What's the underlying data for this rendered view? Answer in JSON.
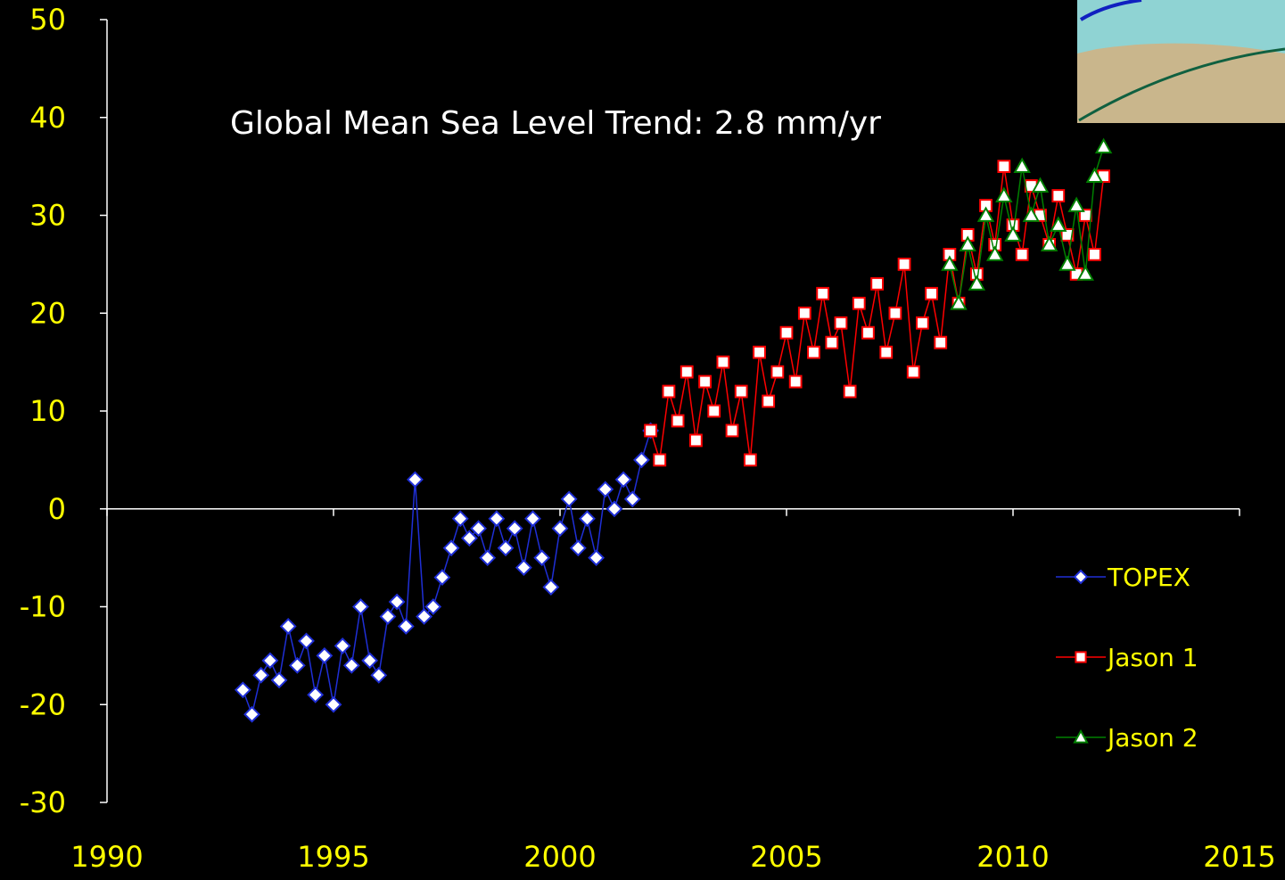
{
  "chart_data": {
    "type": "line",
    "title": "Global Mean Sea Level Trend: 2.8 mm/yr",
    "xlim": [
      1990,
      2015
    ],
    "xticks": [
      1990,
      1995,
      2000,
      2005,
      2010,
      2015
    ],
    "ylim": [
      -30,
      50
    ],
    "yticks": [
      -30,
      -20,
      -10,
      0,
      10,
      20,
      30,
      40,
      50
    ],
    "legend": "right",
    "series": [
      {
        "name": "TOPEX",
        "color": "#1f2fd6",
        "marker": "diamond",
        "x": [
          1993.0,
          1993.2,
          1993.4,
          1993.6,
          1993.8,
          1994.0,
          1994.2,
          1994.4,
          1994.6,
          1994.8,
          1995.0,
          1995.2,
          1995.4,
          1995.6,
          1995.8,
          1996.0,
          1996.2,
          1996.4,
          1996.6,
          1996.8,
          1997.0,
          1997.2,
          1997.4,
          1997.6,
          1997.8,
          1998.0,
          1998.2,
          1998.4,
          1998.6,
          1998.8,
          1999.0,
          1999.2,
          1999.4,
          1999.6,
          1999.8,
          2000.0,
          2000.2,
          2000.4,
          2000.6,
          2000.8,
          2001.0,
          2001.2,
          2001.4,
          2001.6,
          2001.8,
          2002.0
        ],
        "values": [
          -18.5,
          -21,
          -17,
          -15.5,
          -17.5,
          -12,
          -16,
          -13.5,
          -19,
          -15,
          -20,
          -14,
          -16,
          -10,
          -15.5,
          -17,
          -11,
          -9.5,
          -12,
          3,
          -11,
          -10,
          -7,
          -4,
          -1,
          -3,
          -2,
          -5,
          -1,
          -4,
          -2,
          -6,
          -1,
          -5,
          -8,
          -2,
          1,
          -4,
          -1,
          -5,
          2,
          0,
          3,
          1,
          5,
          8
        ]
      },
      {
        "name": "Jason 1",
        "color": "#ff0000",
        "marker": "square",
        "x": [
          2002.0,
          2002.2,
          2002.4,
          2002.6,
          2002.8,
          2003.0,
          2003.2,
          2003.4,
          2003.6,
          2003.8,
          2004.0,
          2004.2,
          2004.4,
          2004.6,
          2004.8,
          2005.0,
          2005.2,
          2005.4,
          2005.6,
          2005.8,
          2006.0,
          2006.2,
          2006.4,
          2006.6,
          2006.8,
          2007.0,
          2007.2,
          2007.4,
          2007.6,
          2007.8,
          2008.0,
          2008.2,
          2008.4,
          2008.6,
          2008.8,
          2009.0,
          2009.2,
          2009.4,
          2009.6,
          2009.8,
          2010.0,
          2010.2,
          2010.4,
          2010.6,
          2010.8,
          2011.0,
          2011.2,
          2011.4,
          2011.6,
          2011.8,
          2012.0
        ],
        "values": [
          8,
          5,
          12,
          9,
          14,
          7,
          13,
          10,
          15,
          8,
          12,
          5,
          16,
          11,
          14,
          18,
          13,
          20,
          16,
          22,
          17,
          19,
          12,
          21,
          18,
          23,
          16,
          20,
          25,
          14,
          19,
          22,
          17,
          26,
          21,
          28,
          24,
          31,
          27,
          35,
          29,
          26,
          33,
          30,
          27,
          32,
          28,
          24,
          30,
          26,
          34
        ]
      },
      {
        "name": "Jason 2",
        "color": "#008000",
        "marker": "triangle",
        "x": [
          2008.6,
          2008.8,
          2009.0,
          2009.2,
          2009.4,
          2009.6,
          2009.8,
          2010.0,
          2010.2,
          2010.4,
          2010.6,
          2010.8,
          2011.0,
          2011.2,
          2011.4,
          2011.6,
          2011.8,
          2012.0
        ],
        "values": [
          25,
          21,
          27,
          23,
          30,
          26,
          32,
          28,
          35,
          30,
          33,
          27,
          29,
          25,
          31,
          24,
          34,
          37
        ]
      }
    ]
  }
}
